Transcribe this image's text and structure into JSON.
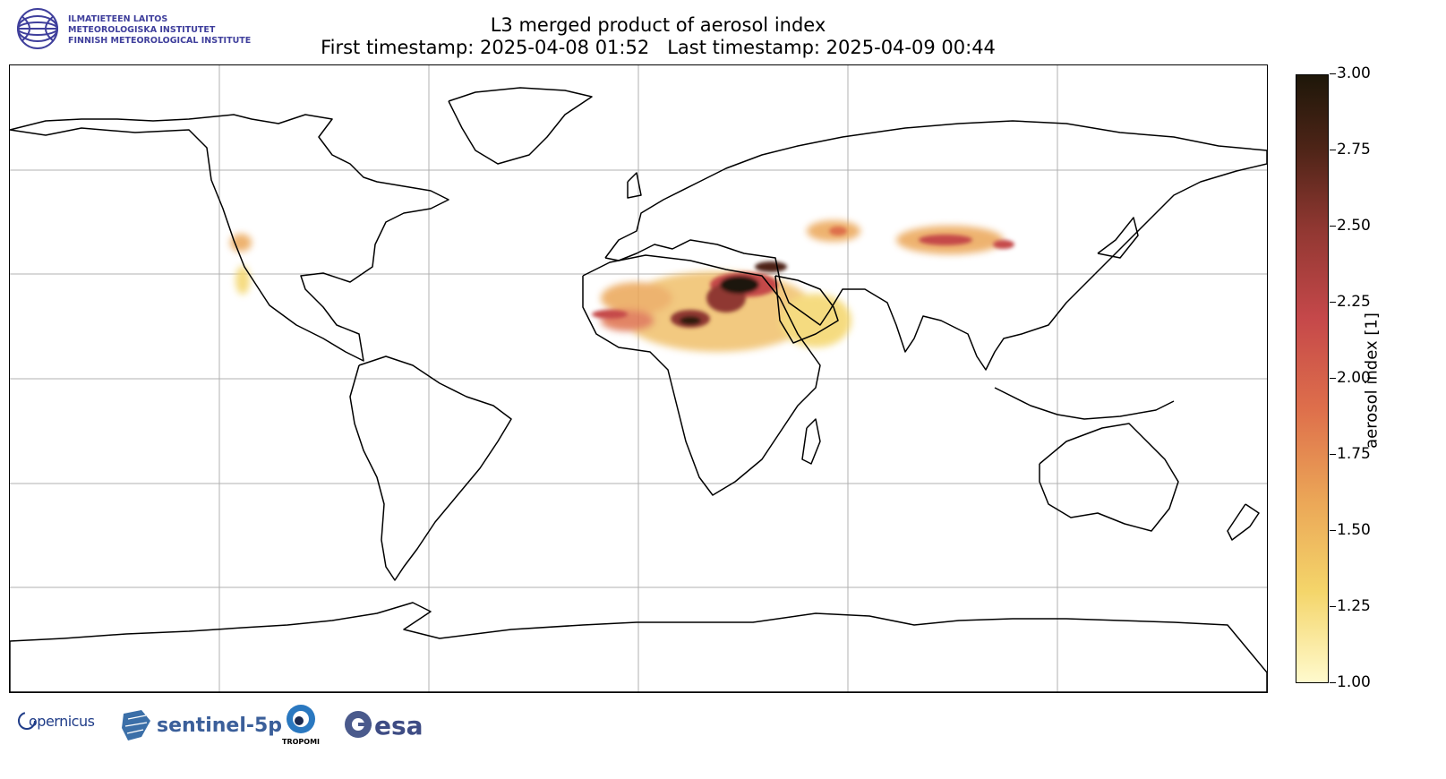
{
  "header": {
    "institute_logo_lines": [
      "ILMATIETEEN LAITOS",
      "METEOROLOGISKA INSTITUTET",
      "FINNISH METEOROLOGICAL INSTITUTE"
    ],
    "title_line1": "L3 merged product of aerosol index",
    "title_line2": "First timestamp: 2025-04-08 01:52   Last timestamp: 2025-04-09 00:44"
  },
  "map": {
    "projection": "equirectangular",
    "lon_range": [
      -180,
      180
    ],
    "lat_range": [
      -90,
      90
    ],
    "gridlines": true,
    "grid_lon_step": 60,
    "grid_lat_step": 30,
    "coastline_color": "#000000",
    "grid_color": "#b0b0b0",
    "aerosol_hotspots": [
      {
        "region": "Sahara / Egypt",
        "peak_value": 3.0
      },
      {
        "region": "Central Sahara (Chad)",
        "peak_value": 2.9
      },
      {
        "region": "West Sahara (Mali/Mauritania)",
        "peak_value": 2.2
      },
      {
        "region": "Arabian Peninsula",
        "peak_value": 1.8
      },
      {
        "region": "Central Asia",
        "peak_value": 2.1
      },
      {
        "region": "Mongolia / North China",
        "peak_value": 2.0
      },
      {
        "region": "Southwest USA / Mexico",
        "peak_value": 1.9
      }
    ]
  },
  "colorbar": {
    "label": "aerosol index [1]",
    "ticks": [
      "1.00",
      "1.25",
      "1.50",
      "1.75",
      "2.00",
      "2.25",
      "2.50",
      "2.75",
      "3.00"
    ],
    "range": [
      1.0,
      3.0
    ],
    "colors": [
      "#fffacd",
      "#f4d56a",
      "#eba657",
      "#de6f4b",
      "#c5484a",
      "#8f3731",
      "#4d2417",
      "#1e1709"
    ]
  },
  "logos": {
    "copernicus": "opernicus",
    "sentinel": "sentinel-5p",
    "tropomi": "TROPOMI",
    "esa": "esa"
  }
}
